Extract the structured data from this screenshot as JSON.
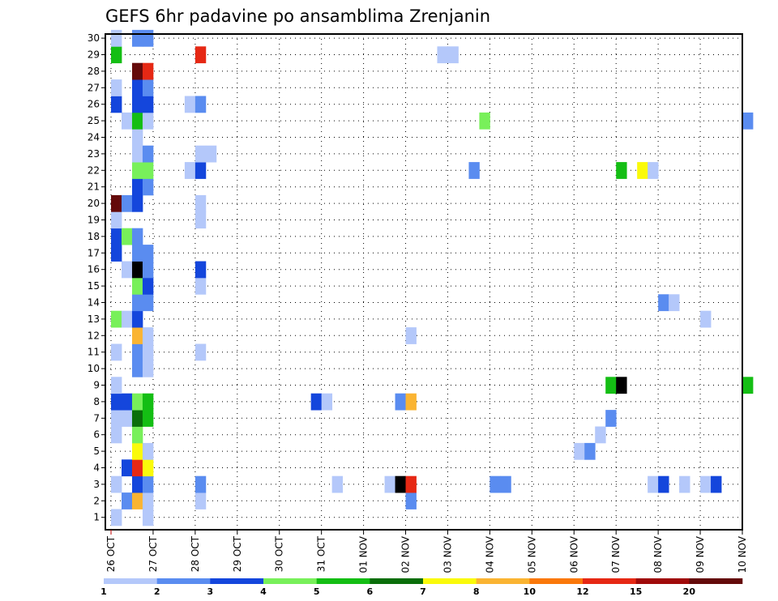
{
  "chart_data": {
    "type": "heatmap",
    "title": "GEFS 6hr padavine po ansamblima Zrenjanin",
    "xlabel": "",
    "ylabel": "",
    "x_ticks": [
      "26 OCT",
      "27 OCT",
      "28 OCT",
      "29 OCT",
      "30 OCT",
      "31 OCT",
      "01 NOV",
      "02 NOV",
      "03 NOV",
      "04 NOV",
      "05 NOV",
      "06 NOV",
      "07 NOV",
      "08 NOV",
      "09 NOV",
      "10 NOV"
    ],
    "y_ticks": [
      "1",
      "2",
      "3",
      "4",
      "5",
      "6",
      "7",
      "8",
      "9",
      "10",
      "11",
      "12",
      "13",
      "14",
      "15",
      "16",
      "17",
      "18",
      "19",
      "20",
      "21",
      "22",
      "23",
      "24",
      "25",
      "26",
      "27",
      "28",
      "29",
      "30"
    ],
    "xlim": [
      0,
      15
    ],
    "ylim": [
      0.25,
      30.25
    ],
    "x_unit": "days from 26 OCT 00Z (6-hourly steps)",
    "y_unit": "ensemble member",
    "legend": {
      "labels": [
        "1",
        "2",
        "3",
        "4",
        "5",
        "6",
        "7",
        "8",
        "10",
        "12",
        "15",
        "20"
      ],
      "colors": [
        "#b4c8fa",
        "#5a8cf0",
        "#1446dc",
        "#78f05a",
        "#14be14",
        "#0a6e0a",
        "#fafa0a",
        "#fab432",
        "#fa780a",
        "#e62814",
        "#a00a0a",
        "#640a0a"
      ],
      "placement": "bottom"
    },
    "series": [
      {
        "member": 1,
        "cells": [
          [
            0.0,
            1
          ],
          [
            0.75,
            1
          ]
        ]
      },
      {
        "member": 2,
        "cells": [
          [
            0.25,
            2
          ],
          [
            0.5,
            8
          ],
          [
            0.75,
            1
          ],
          [
            2.0,
            1
          ],
          [
            7.0,
            2
          ]
        ]
      },
      {
        "member": 3,
        "cells": [
          [
            0.0,
            1
          ],
          [
            0.5,
            3
          ],
          [
            0.75,
            2
          ],
          [
            2.0,
            2
          ],
          [
            5.25,
            1
          ],
          [
            6.5,
            1
          ],
          [
            6.75,
            15
          ],
          [
            7.0,
            10
          ],
          [
            9.0,
            2
          ],
          [
            9.25,
            2
          ],
          [
            12.75,
            1
          ],
          [
            13.0,
            3
          ],
          [
            13.5,
            1
          ],
          [
            14.0,
            1
          ],
          [
            14.25,
            3
          ]
        ]
      },
      {
        "member": 4,
        "cells": [
          [
            0.25,
            3
          ],
          [
            0.5,
            10
          ],
          [
            0.75,
            7
          ]
        ]
      },
      {
        "member": 5,
        "cells": [
          [
            0.5,
            7
          ],
          [
            0.75,
            1
          ],
          [
            11.0,
            1
          ],
          [
            11.25,
            2
          ]
        ]
      },
      {
        "member": 6,
        "cells": [
          [
            0.0,
            1
          ],
          [
            0.5,
            4
          ],
          [
            11.5,
            1
          ]
        ]
      },
      {
        "member": 7,
        "cells": [
          [
            0.0,
            1
          ],
          [
            0.25,
            1
          ],
          [
            0.5,
            6
          ],
          [
            0.75,
            5
          ],
          [
            11.75,
            2
          ]
        ]
      },
      {
        "member": 8,
        "cells": [
          [
            0.0,
            3
          ],
          [
            0.25,
            3
          ],
          [
            0.5,
            4
          ],
          [
            0.75,
            5
          ],
          [
            4.75,
            3
          ],
          [
            5.0,
            1
          ],
          [
            6.75,
            2
          ],
          [
            7.0,
            8
          ]
        ]
      },
      {
        "member": 9,
        "cells": [
          [
            0.0,
            1
          ],
          [
            11.75,
            5
          ],
          [
            12.0,
            20
          ],
          [
            15.0,
            5
          ]
        ]
      },
      {
        "member": 10,
        "cells": [
          [
            0.5,
            2
          ],
          [
            0.75,
            1
          ]
        ]
      },
      {
        "member": 11,
        "cells": [
          [
            0.0,
            1
          ],
          [
            0.5,
            2
          ],
          [
            0.75,
            1
          ],
          [
            2.0,
            1
          ]
        ]
      },
      {
        "member": 12,
        "cells": [
          [
            0.5,
            8
          ],
          [
            0.75,
            1
          ],
          [
            7.0,
            1
          ]
        ]
      },
      {
        "member": 13,
        "cells": [
          [
            0.0,
            4
          ],
          [
            0.25,
            1
          ],
          [
            0.5,
            3
          ],
          [
            14.0,
            1
          ]
        ]
      },
      {
        "member": 14,
        "cells": [
          [
            0.5,
            2
          ],
          [
            0.75,
            2
          ],
          [
            13.0,
            2
          ],
          [
            13.25,
            1
          ]
        ]
      },
      {
        "member": 15,
        "cells": [
          [
            0.5,
            4
          ],
          [
            0.75,
            3
          ],
          [
            2.0,
            1
          ]
        ]
      },
      {
        "member": 16,
        "cells": [
          [
            0.25,
            1
          ],
          [
            0.5,
            20
          ],
          [
            0.75,
            2
          ],
          [
            2.0,
            3
          ]
        ]
      },
      {
        "member": 17,
        "cells": [
          [
            0.0,
            3
          ],
          [
            0.5,
            2
          ],
          [
            0.75,
            2
          ]
        ]
      },
      {
        "member": 18,
        "cells": [
          [
            0.0,
            3
          ],
          [
            0.25,
            4
          ],
          [
            0.5,
            2
          ]
        ]
      },
      {
        "member": 19,
        "cells": [
          [
            0.0,
            1
          ],
          [
            2.0,
            1
          ]
        ]
      },
      {
        "member": 20,
        "cells": [
          [
            0.0,
            12
          ],
          [
            0.25,
            2
          ],
          [
            0.5,
            3
          ],
          [
            2.0,
            1
          ]
        ]
      },
      {
        "member": 21,
        "cells": [
          [
            0.5,
            3
          ],
          [
            0.75,
            2
          ]
        ]
      },
      {
        "member": 22,
        "cells": [
          [
            0.5,
            4
          ],
          [
            0.75,
            4
          ],
          [
            1.75,
            1
          ],
          [
            2.0,
            3
          ],
          [
            8.5,
            2
          ],
          [
            12.0,
            5
          ],
          [
            12.5,
            7
          ],
          [
            12.75,
            1
          ]
        ]
      },
      {
        "member": 23,
        "cells": [
          [
            0.5,
            1
          ],
          [
            0.75,
            2
          ],
          [
            2.0,
            1
          ],
          [
            2.25,
            1
          ]
        ]
      },
      {
        "member": 24,
        "cells": [
          [
            0.5,
            1
          ]
        ]
      },
      {
        "member": 25,
        "cells": [
          [
            0.25,
            1
          ],
          [
            0.5,
            5
          ],
          [
            0.75,
            1
          ],
          [
            8.75,
            4
          ],
          [
            15.0,
            2
          ]
        ]
      },
      {
        "member": 26,
        "cells": [
          [
            0.0,
            3
          ],
          [
            0.5,
            3
          ],
          [
            0.75,
            3
          ],
          [
            1.75,
            1
          ],
          [
            2.0,
            2
          ]
        ]
      },
      {
        "member": 27,
        "cells": [
          [
            0.0,
            1
          ],
          [
            0.5,
            3
          ],
          [
            0.75,
            2
          ]
        ]
      },
      {
        "member": 28,
        "cells": [
          [
            0.5,
            12
          ],
          [
            0.75,
            10
          ]
        ]
      },
      {
        "member": 29,
        "cells": [
          [
            0.0,
            5
          ],
          [
            2.0,
            10
          ],
          [
            7.75,
            1
          ],
          [
            8.0,
            1
          ]
        ]
      },
      {
        "member": 30,
        "cells": [
          [
            0.0,
            1
          ],
          [
            0.5,
            2
          ],
          [
            0.75,
            2
          ]
        ]
      }
    ]
  }
}
